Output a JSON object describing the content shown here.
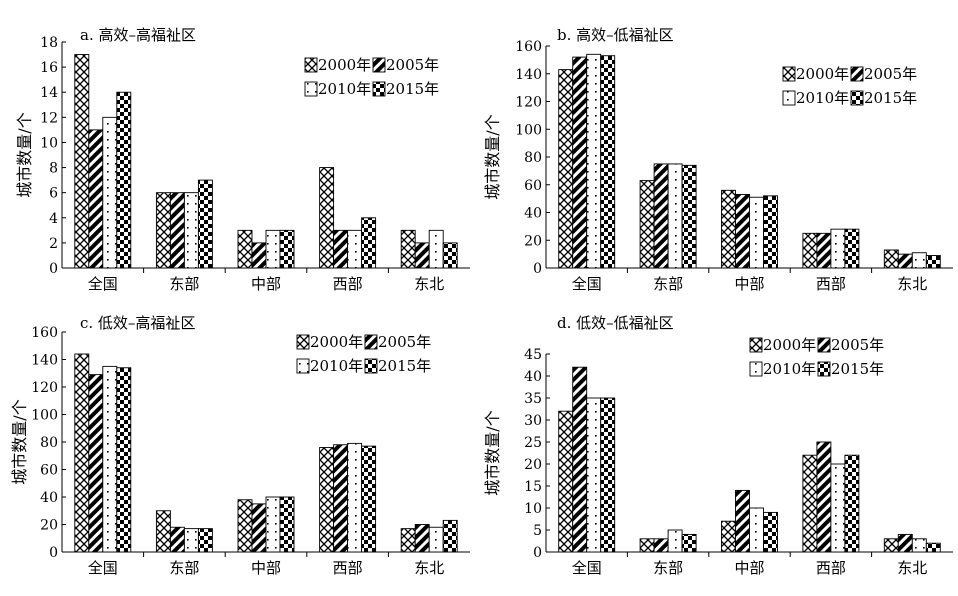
{
  "figure": {
    "series_names": [
      "2000年",
      "2005年",
      "2010年",
      "2015年"
    ]
  },
  "chart_data": [
    {
      "type": "bar",
      "title": "a. 高效–高福祉区",
      "ylabel": "城市数量/个",
      "xlabel": "",
      "ylim": [
        0,
        18
      ],
      "ytick_step": 2,
      "categories": [
        "全国",
        "东部",
        "中部",
        "西部",
        "东北"
      ],
      "series": [
        {
          "name": "2000年",
          "values": [
            17,
            6,
            3,
            8,
            3
          ]
        },
        {
          "name": "2005年",
          "values": [
            11,
            6,
            2,
            3,
            2
          ]
        },
        {
          "name": "2010年",
          "values": [
            12,
            6,
            3,
            3,
            3
          ]
        },
        {
          "name": "2015年",
          "values": [
            14,
            7,
            3,
            4,
            2
          ]
        }
      ],
      "grid": false,
      "legend": "top-right"
    },
    {
      "type": "bar",
      "title": "b. 高效–低福祉区",
      "ylabel": "城市数量/个",
      "xlabel": "",
      "ylim": [
        0,
        160
      ],
      "ytick_step": 20,
      "categories": [
        "全国",
        "东部",
        "中部",
        "西部",
        "东北"
      ],
      "series": [
        {
          "name": "2000年",
          "values": [
            143,
            63,
            56,
            25,
            13
          ]
        },
        {
          "name": "2005年",
          "values": [
            152,
            75,
            53,
            25,
            10
          ]
        },
        {
          "name": "2010年",
          "values": [
            154,
            75,
            51,
            28,
            11
          ]
        },
        {
          "name": "2015年",
          "values": [
            153,
            74,
            52,
            28,
            9
          ]
        }
      ],
      "grid": false,
      "legend": "top-right"
    },
    {
      "type": "bar",
      "title": "c. 低效–高福祉区",
      "ylabel": "城市数量/个",
      "xlabel": "",
      "ylim": [
        0,
        160
      ],
      "ytick_step": 20,
      "categories": [
        "全国",
        "东部",
        "中部",
        "西部",
        "东北"
      ],
      "series": [
        {
          "name": "2000年",
          "values": [
            144,
            30,
            38,
            76,
            17
          ]
        },
        {
          "name": "2005年",
          "values": [
            129,
            18,
            35,
            78,
            20
          ]
        },
        {
          "name": "2010年",
          "values": [
            135,
            17,
            40,
            79,
            18
          ]
        },
        {
          "name": "2015年",
          "values": [
            134,
            17,
            40,
            77,
            23
          ]
        }
      ],
      "grid": false,
      "legend": "top-right"
    },
    {
      "type": "bar",
      "title": "d. 低效–低福祉区",
      "ylabel": "城市数量/个",
      "xlabel": "",
      "ylim": [
        0,
        45
      ],
      "ytick_step": 5,
      "categories": [
        "全国",
        "东部",
        "中部",
        "西部",
        "东北"
      ],
      "series": [
        {
          "name": "2000年",
          "values": [
            32,
            3,
            7,
            22,
            3
          ]
        },
        {
          "name": "2005年",
          "values": [
            42,
            3,
            14,
            25,
            4
          ]
        },
        {
          "name": "2010年",
          "values": [
            35,
            5,
            10,
            20,
            3
          ]
        },
        {
          "name": "2015年",
          "values": [
            35,
            4,
            9,
            22,
            2
          ]
        }
      ],
      "grid": false,
      "legend": "top-right"
    }
  ]
}
